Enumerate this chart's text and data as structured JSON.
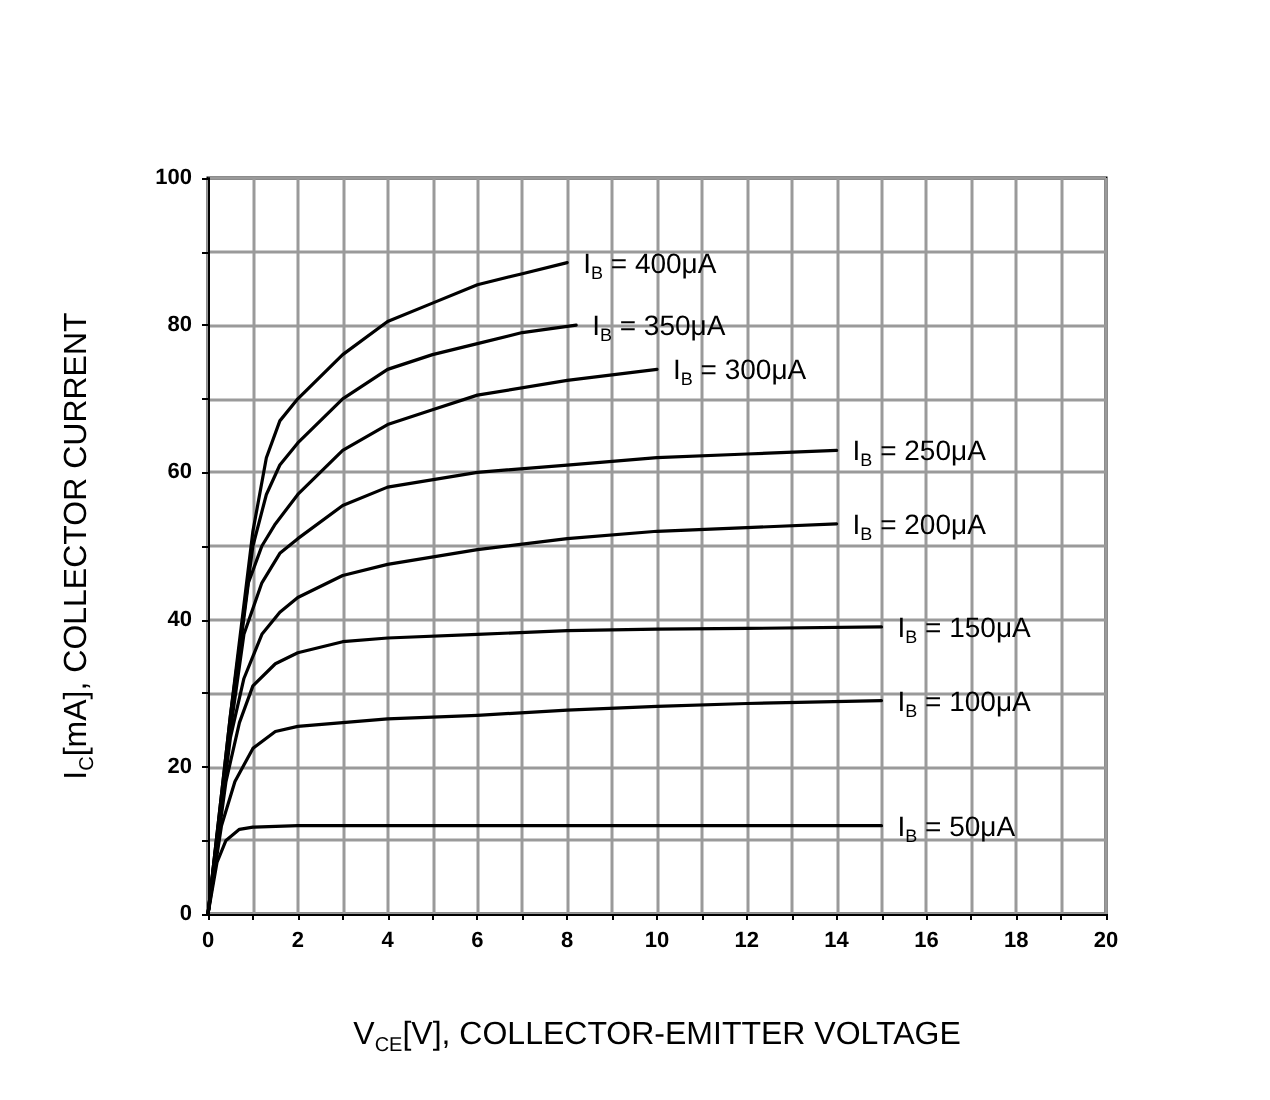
{
  "chart_data": {
    "type": "line",
    "xlabel": "V$_{CE}$[V], COLLECTOR-EMITTER VOLTAGE",
    "ylabel": "I$_{C}$[mA], COLLECTOR CURRENT",
    "xlim": [
      0,
      20
    ],
    "ylim": [
      0,
      100
    ],
    "xticks": [
      0,
      {
        "value": 1,
        "label": null
      },
      2,
      {
        "value": 3,
        "label": null
      },
      4,
      {
        "value": 5,
        "label": null
      },
      6,
      {
        "value": 7,
        "label": null
      },
      8,
      {
        "value": 9,
        "label": null
      },
      10,
      {
        "value": 11,
        "label": null
      },
      12,
      {
        "value": 13,
        "label": null
      },
      14,
      {
        "value": 15,
        "label": null
      },
      16,
      {
        "value": 17,
        "label": null
      },
      18,
      {
        "value": 19,
        "label": null
      },
      20
    ],
    "yticks": [
      0,
      {
        "value": 10,
        "label": null
      },
      20,
      {
        "value": 30,
        "label": null
      },
      40,
      {
        "value": 50,
        "label": null
      },
      60,
      {
        "value": 70,
        "label": null
      },
      80,
      {
        "value": 90,
        "label": null
      },
      100
    ],
    "grid": true,
    "marker": "none",
    "line_style": "solid",
    "series": [
      {
        "name": "I$_{B}$ = 400μA",
        "color": "#000000",
        "x": [
          0,
          0.5,
          1,
          1.3,
          1.6,
          2,
          3,
          4,
          5,
          6,
          7,
          8
        ],
        "values": [
          0,
          27,
          52,
          62,
          67,
          70,
          76,
          80.5,
          83,
          85.5,
          87,
          88.5
        ]
      },
      {
        "name": "I$_{B}$ = 350μA",
        "color": "#000000",
        "x": [
          0,
          0.5,
          1,
          1.3,
          1.6,
          2,
          3,
          4,
          5,
          6,
          7,
          8.2
        ],
        "values": [
          0,
          27,
          50,
          57,
          61,
          64,
          70,
          74,
          76,
          77.5,
          79,
          80
        ]
      },
      {
        "name": "I$_{B}$ = 300μA",
        "color": "#000000",
        "x": [
          0,
          0.5,
          0.9,
          1.2,
          1.5,
          2,
          3,
          4,
          5,
          6,
          8,
          10
        ],
        "values": [
          0,
          26,
          45,
          50,
          53,
          57,
          63,
          66.5,
          68.5,
          70.5,
          72.5,
          74
        ]
      },
      {
        "name": "I$_{B}$ = 250μA",
        "color": "#000000",
        "x": [
          0,
          0.5,
          0.8,
          1.2,
          1.6,
          2,
          3,
          4,
          6,
          8,
          10,
          12,
          14
        ],
        "values": [
          0,
          25,
          38,
          45,
          49,
          51,
          55.5,
          58,
          60,
          61,
          62,
          62.5,
          63
        ]
      },
      {
        "name": "I$_{B}$ = 200μA",
        "color": "#000000",
        "x": [
          0,
          0.5,
          0.8,
          1.2,
          1.6,
          2,
          3,
          4,
          6,
          8,
          10,
          12,
          14
        ],
        "values": [
          0,
          24,
          32,
          38,
          41,
          43,
          46,
          47.5,
          49.5,
          51,
          52,
          52.5,
          53
        ]
      },
      {
        "name": "I$_{B}$ = 150μA",
        "color": "#000000",
        "x": [
          0,
          0.4,
          0.7,
          1,
          1.5,
          2,
          3,
          4,
          6,
          8,
          10,
          12,
          15
        ],
        "values": [
          0,
          18,
          26,
          31,
          34,
          35.5,
          37,
          37.5,
          38,
          38.5,
          38.7,
          38.8,
          39
        ]
      },
      {
        "name": "I$_{B}$ = 100μA",
        "color": "#000000",
        "x": [
          0,
          0.3,
          0.6,
          1,
          1.5,
          2,
          4,
          6,
          8,
          10,
          12,
          15
        ],
        "values": [
          0,
          12,
          18,
          22.5,
          24.8,
          25.5,
          26.5,
          27,
          27.7,
          28.2,
          28.6,
          29
        ]
      },
      {
        "name": "I$_{B}$ = 50μA",
        "color": "#000000",
        "x": [
          0,
          0.2,
          0.4,
          0.7,
          1,
          2,
          5,
          10,
          15
        ],
        "values": [
          0,
          7,
          10,
          11.5,
          11.8,
          12,
          12,
          12,
          12
        ]
      }
    ]
  }
}
